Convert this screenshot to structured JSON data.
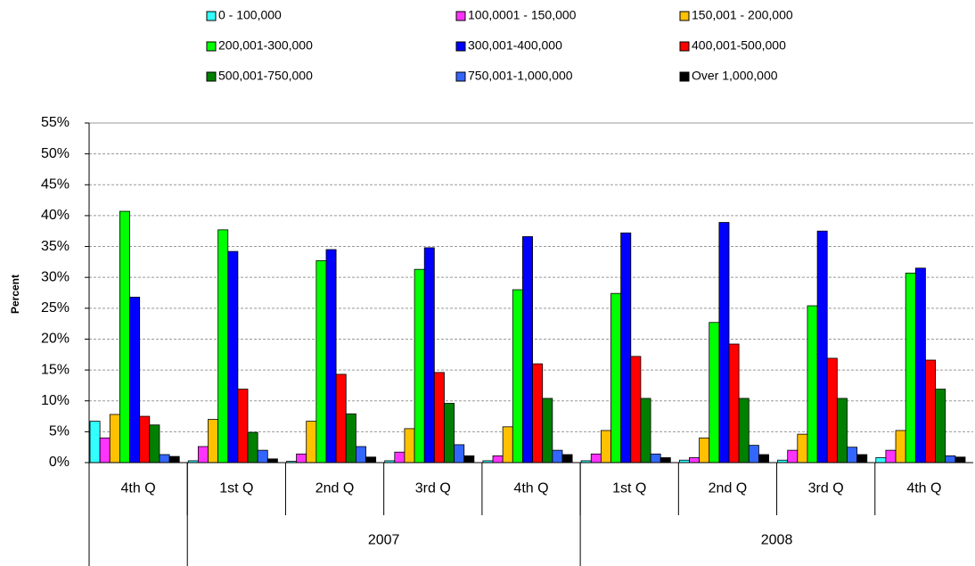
{
  "chart_data": {
    "type": "bar",
    "y_label": "Percent",
    "categories": [
      "4th Q",
      "1st Q",
      "2nd Q",
      "3rd Q",
      "4th Q",
      "1st Q",
      "2nd Q",
      "3rd Q",
      "4th Q"
    ],
    "category_groups": [
      null,
      "2007",
      "2007",
      "2007",
      "2007",
      "2008",
      "2008",
      "2008",
      "2008"
    ],
    "ylim": [
      0,
      55
    ],
    "yticks": [
      {
        "value": 0,
        "label": "0%"
      },
      {
        "value": 5,
        "label": "5%"
      },
      {
        "value": 10,
        "label": "10%"
      },
      {
        "value": 15,
        "label": "15%"
      },
      {
        "value": 20,
        "label": "20%"
      },
      {
        "value": 25,
        "label": "25%"
      },
      {
        "value": 30,
        "label": "30%"
      },
      {
        "value": 35,
        "label": "35%"
      },
      {
        "value": 40,
        "label": "40%"
      },
      {
        "value": 45,
        "label": "45%"
      },
      {
        "value": 50,
        "label": "50%"
      },
      {
        "value": 55,
        "label": "55%"
      }
    ],
    "grid": true,
    "legend_position": "top",
    "series": [
      {
        "name": "0 - 100,000",
        "color": "#33ffff",
        "values": [
          6.7,
          0.3,
          0.2,
          0.3,
          0.3,
          0.3,
          0.4,
          0.4,
          0.8
        ]
      },
      {
        "name": "100,0001 - 150,000",
        "color": "#ff33ff",
        "values": [
          4.0,
          2.6,
          1.4,
          1.7,
          1.1,
          1.4,
          0.8,
          2.0,
          2.0
        ]
      },
      {
        "name": "150,001 - 200,000",
        "color": "#ffc000",
        "values": [
          7.8,
          7.0,
          6.7,
          5.5,
          5.8,
          5.2,
          4.0,
          4.6,
          5.2
        ]
      },
      {
        "name": "200,001-300,000",
        "color": "#00ff00",
        "values": [
          40.7,
          37.7,
          32.7,
          31.3,
          28.0,
          27.4,
          22.7,
          25.4,
          30.7
        ]
      },
      {
        "name": "300,001-400,000",
        "color": "#0000ff",
        "values": [
          26.8,
          34.2,
          34.5,
          34.8,
          36.6,
          37.2,
          38.9,
          37.5,
          31.5
        ]
      },
      {
        "name": "400,001-500,000",
        "color": "#ff0000",
        "values": [
          7.5,
          11.9,
          14.3,
          14.6,
          16.0,
          17.2,
          19.2,
          16.9,
          16.6
        ]
      },
      {
        "name": "500,001-750,000",
        "color": "#008000",
        "values": [
          6.1,
          4.9,
          7.9,
          9.6,
          10.4,
          10.4,
          10.4,
          10.4,
          11.9
        ]
      },
      {
        "name": "750,001-1,000,000",
        "color": "#3366ff",
        "values": [
          1.3,
          2.0,
          2.6,
          2.9,
          2.0,
          1.4,
          2.8,
          2.5,
          1.1
        ]
      },
      {
        "name": "Over 1,000,000",
        "color": "#000000",
        "values": [
          1.0,
          0.6,
          0.9,
          1.1,
          1.3,
          0.8,
          1.3,
          1.3,
          0.9
        ]
      }
    ]
  }
}
